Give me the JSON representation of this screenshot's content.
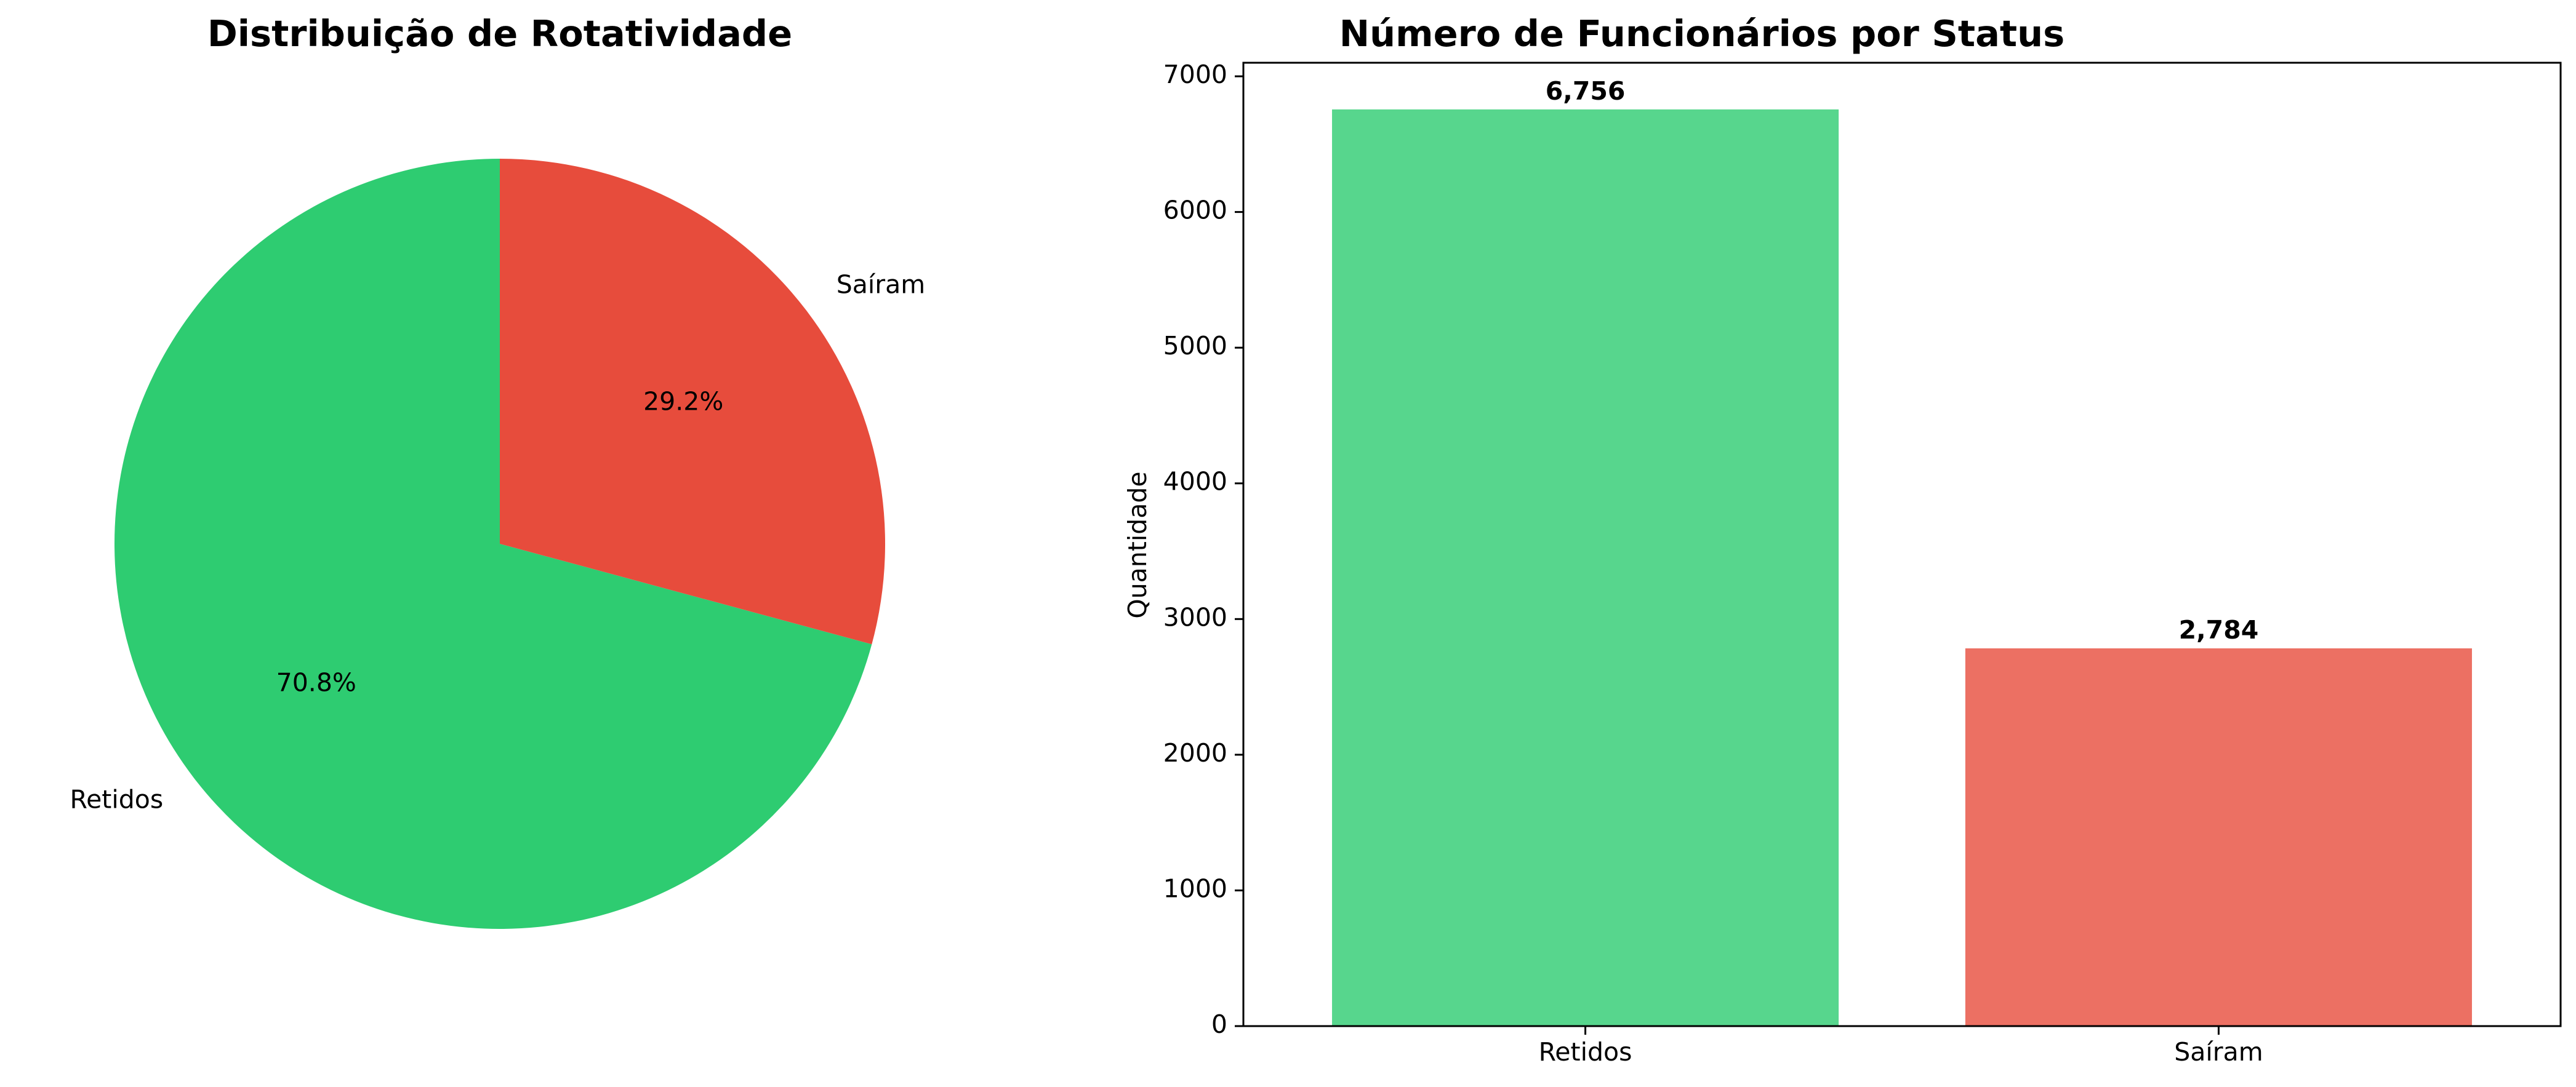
{
  "chart_data": [
    {
      "type": "pie",
      "title": "Distribuição de Rotatividade",
      "slices": [
        {
          "label": "Retidos",
          "pct_text": "70.8%",
          "value": 70.8,
          "color": "#2ecc71"
        },
        {
          "label": "Saíram",
          "pct_text": "29.2%",
          "value": 29.2,
          "color": "#e74c3c"
        }
      ]
    },
    {
      "type": "bar",
      "title": "Número de Funcionários por Status",
      "xlabel": "",
      "ylabel": "Quantidade",
      "categories": [
        "Retidos",
        "Saíram"
      ],
      "values": [
        6756,
        2784
      ],
      "value_labels": [
        "6,756",
        "2,784"
      ],
      "colors": [
        "#57d68d",
        "#ec7063"
      ],
      "ylim": [
        0,
        7100
      ],
      "yticks": [
        0,
        1000,
        2000,
        3000,
        4000,
        5000,
        6000,
        7000
      ],
      "grid": false
    }
  ]
}
